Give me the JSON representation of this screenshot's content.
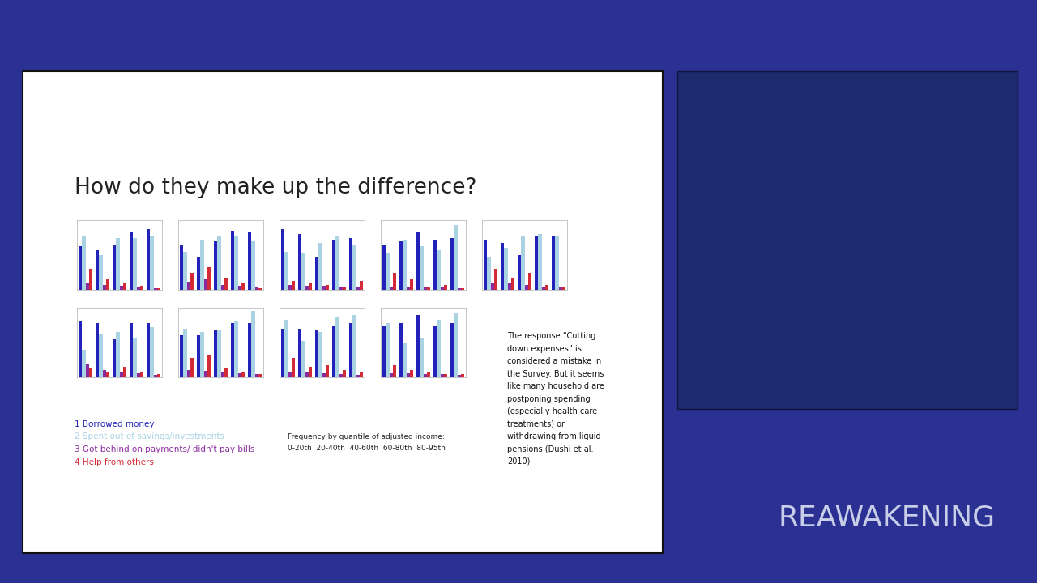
{
  "slide": {
    "title": "How do they make up the difference?",
    "legend_caption": "Frequency by quantile of adjusted income:",
    "quantiles": "0-20th  20-40th  40-60th  60-80th  80-95th",
    "note": [
      "The response “Cutting",
      "down expenses” is",
      "considered a mistake in",
      "the Survey. But it seems",
      "like many household are",
      "postponing spending",
      "(especially health care",
      "treatments) or",
      "withdrawing from liquid",
      "pensions (Dushi et al.",
      "2010)"
    ]
  },
  "branding": "REAWAKENING",
  "chart_data": [
    {
      "type": "bar",
      "categories": [
        null,
        null,
        null,
        null,
        null
      ],
      "ylim": [
        0,
        80
      ],
      "tick_labels": false,
      "series": [
        {
          "name": "1 Borrowed money",
          "color": "#2222bb",
          "values": [
            50,
            46,
            52,
            66,
            70
          ]
        },
        {
          "name": "2 Spent out of savings/investments",
          "color": "#a9d3e3",
          "values": [
            62,
            40,
            60,
            60,
            62
          ]
        },
        {
          "name": "3 Got behind on payments/ didn't pay bills",
          "color": "#8a2a9e",
          "values": [
            8,
            6,
            5,
            4,
            2
          ]
        },
        {
          "name": "4 Help from others",
          "color": "#d42a36",
          "values": [
            24,
            12,
            8,
            5,
            2
          ]
        }
      ]
    },
    {
      "type": "bar",
      "categories": [
        null,
        null,
        null,
        null,
        null
      ],
      "ylim": [
        0,
        80
      ],
      "tick_labels": false,
      "series": [
        {
          "name": "1 Borrowed money",
          "color": "#2222bb",
          "values": [
            52,
            38,
            56,
            68,
            66
          ]
        },
        {
          "name": "2 Spent out of savings/investments",
          "color": "#a9d3e3",
          "values": [
            44,
            58,
            62,
            62,
            56
          ]
        },
        {
          "name": "3 Got behind on payments/ didn't pay bills",
          "color": "#8a2a9e",
          "values": [
            9,
            12,
            6,
            5,
            3
          ]
        },
        {
          "name": "4 Help from others",
          "color": "#d42a36",
          "values": [
            20,
            26,
            14,
            7,
            2
          ]
        }
      ]
    },
    {
      "type": "bar",
      "categories": [
        null,
        null,
        null,
        null,
        null
      ],
      "ylim": [
        0,
        80
      ],
      "tick_labels": false,
      "series": [
        {
          "name": "1 Borrowed money",
          "color": "#2222bb",
          "values": [
            70,
            64,
            38,
            58,
            60
          ]
        },
        {
          "name": "2 Spent out of savings/investments",
          "color": "#a9d3e3",
          "values": [
            44,
            42,
            54,
            62,
            52
          ]
        },
        {
          "name": "3 Got behind on payments/ didn't pay bills",
          "color": "#8a2a9e",
          "values": [
            6,
            5,
            5,
            4,
            3
          ]
        },
        {
          "name": "4 Help from others",
          "color": "#d42a36",
          "values": [
            10,
            8,
            6,
            4,
            10
          ]
        }
      ]
    },
    {
      "type": "bar",
      "categories": [
        null,
        null,
        null,
        null,
        null
      ],
      "ylim": [
        0,
        80
      ],
      "tick_labels": false,
      "series": [
        {
          "name": "1 Borrowed money",
          "color": "#2222bb",
          "values": [
            52,
            56,
            66,
            58,
            60
          ]
        },
        {
          "name": "2 Spent out of savings/investments",
          "color": "#a9d3e3",
          "values": [
            42,
            58,
            50,
            46,
            74
          ]
        },
        {
          "name": "3 Got behind on payments/ didn't pay bills",
          "color": "#8a2a9e",
          "values": [
            4,
            3,
            3,
            3,
            2
          ]
        },
        {
          "name": "4 Help from others",
          "color": "#d42a36",
          "values": [
            20,
            12,
            4,
            6,
            2
          ]
        }
      ]
    },
    {
      "type": "bar",
      "categories": [
        null,
        null,
        null,
        null,
        null
      ],
      "ylim": [
        0,
        80
      ],
      "tick_labels": false,
      "series": [
        {
          "name": "1 Borrowed money",
          "color": "#2222bb",
          "values": [
            58,
            54,
            40,
            62,
            62
          ]
        },
        {
          "name": "2 Spent out of savings/investments",
          "color": "#a9d3e3",
          "values": [
            38,
            48,
            62,
            64,
            62
          ]
        },
        {
          "name": "3 Got behind on payments/ didn't pay bills",
          "color": "#8a2a9e",
          "values": [
            8,
            8,
            6,
            4,
            3
          ]
        },
        {
          "name": "4 Help from others",
          "color": "#d42a36",
          "values": [
            24,
            14,
            20,
            6,
            4
          ]
        }
      ]
    },
    {
      "type": "bar",
      "categories": [
        null,
        null,
        null,
        null,
        null
      ],
      "ylim": [
        0,
        80
      ],
      "tick_labels": false,
      "series": [
        {
          "name": "1 Borrowed money",
          "color": "#2222bb",
          "values": [
            64,
            62,
            44,
            62,
            62
          ]
        },
        {
          "name": "2 Spent out of savings/investments",
          "color": "#a9d3e3",
          "values": [
            32,
            50,
            52,
            46,
            58
          ]
        },
        {
          "name": "3 Got behind on payments/ didn't pay bills",
          "color": "#8a2a9e",
          "values": [
            16,
            8,
            6,
            5,
            3
          ]
        },
        {
          "name": "4 Help from others",
          "color": "#d42a36",
          "values": [
            10,
            6,
            12,
            6,
            4
          ]
        }
      ]
    },
    {
      "type": "bar",
      "categories": [
        null,
        null,
        null,
        null,
        null
      ],
      "ylim": [
        0,
        80
      ],
      "tick_labels": false,
      "series": [
        {
          "name": "1 Borrowed money",
          "color": "#2222bb",
          "values": [
            48,
            48,
            54,
            62,
            62
          ]
        },
        {
          "name": "2 Spent out of savings/investments",
          "color": "#a9d3e3",
          "values": [
            56,
            52,
            54,
            64,
            76
          ]
        },
        {
          "name": "3 Got behind on payments/ didn't pay bills",
          "color": "#8a2a9e",
          "values": [
            8,
            7,
            6,
            5,
            4
          ]
        },
        {
          "name": "4 Help from others",
          "color": "#d42a36",
          "values": [
            22,
            26,
            10,
            6,
            4
          ]
        }
      ]
    },
    {
      "type": "bar",
      "categories": [
        null,
        null,
        null,
        null,
        null
      ],
      "ylim": [
        0,
        80
      ],
      "tick_labels": false,
      "series": [
        {
          "name": "1 Borrowed money",
          "color": "#2222bb",
          "values": [
            56,
            56,
            54,
            60,
            62
          ]
        },
        {
          "name": "2 Spent out of savings/investments",
          "color": "#a9d3e3",
          "values": [
            66,
            42,
            52,
            70,
            72
          ]
        },
        {
          "name": "3 Got behind on payments/ didn't pay bills",
          "color": "#8a2a9e",
          "values": [
            6,
            6,
            5,
            4,
            3
          ]
        },
        {
          "name": "4 Help from others",
          "color": "#d42a36",
          "values": [
            22,
            12,
            14,
            8,
            6
          ]
        }
      ]
    },
    {
      "type": "bar",
      "categories": [
        null,
        null,
        null,
        null,
        null
      ],
      "ylim": [
        0,
        80
      ],
      "tick_labels": false,
      "series": [
        {
          "name": "1 Borrowed money",
          "color": "#2222bb",
          "values": [
            60,
            62,
            72,
            60,
            62
          ]
        },
        {
          "name": "2 Spent out of savings/investments",
          "color": "#a9d3e3",
          "values": [
            62,
            40,
            46,
            66,
            74
          ]
        },
        {
          "name": "3 Got behind on payments/ didn't pay bills",
          "color": "#8a2a9e",
          "values": [
            5,
            5,
            4,
            4,
            3
          ]
        },
        {
          "name": "4 Help from others",
          "color": "#d42a36",
          "values": [
            14,
            8,
            6,
            4,
            4
          ]
        }
      ]
    }
  ]
}
